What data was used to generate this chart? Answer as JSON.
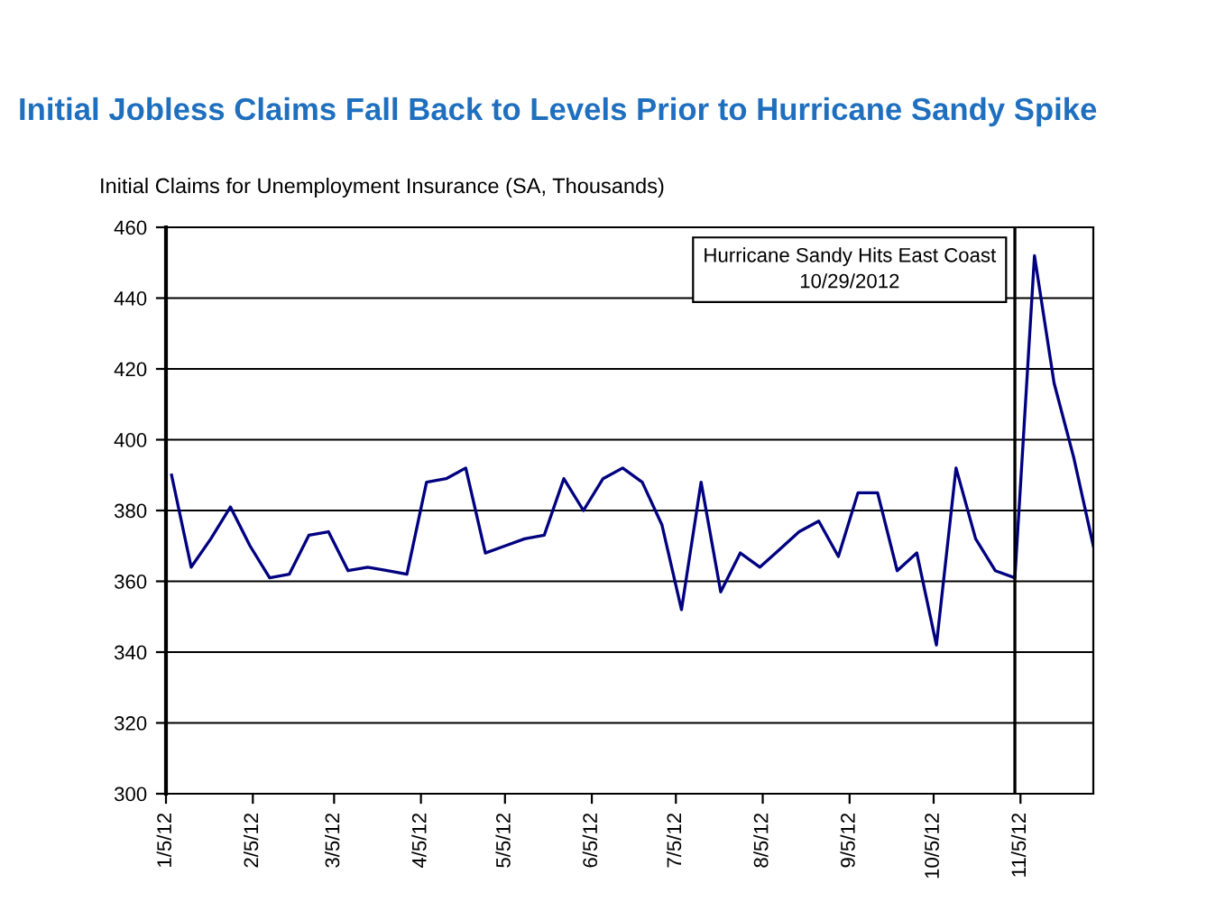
{
  "chart_data": {
    "type": "line",
    "title": "Initial Jobless Claims Fall Back to Levels Prior to Hurricane Sandy Spike",
    "ylabel": "Initial Claims for Unemployment Insurance (SA, Thousands)",
    "x": [
      "2012-01-07",
      "2012-01-14",
      "2012-01-21",
      "2012-01-28",
      "2012-02-04",
      "2012-02-11",
      "2012-02-18",
      "2012-02-25",
      "2012-03-03",
      "2012-03-10",
      "2012-03-17",
      "2012-03-24",
      "2012-03-31",
      "2012-04-07",
      "2012-04-14",
      "2012-04-21",
      "2012-04-28",
      "2012-05-05",
      "2012-05-12",
      "2012-05-19",
      "2012-05-26",
      "2012-06-02",
      "2012-06-09",
      "2012-06-16",
      "2012-06-23",
      "2012-06-30",
      "2012-07-07",
      "2012-07-14",
      "2012-07-21",
      "2012-07-28",
      "2012-08-04",
      "2012-08-11",
      "2012-08-18",
      "2012-08-25",
      "2012-09-01",
      "2012-09-08",
      "2012-09-15",
      "2012-09-22",
      "2012-09-29",
      "2012-10-06",
      "2012-10-13",
      "2012-10-20",
      "2012-10-27",
      "2012-11-03",
      "2012-11-10",
      "2012-11-17",
      "2012-11-24",
      "2012-12-01"
    ],
    "series": [
      {
        "color": "#000080",
        "values": [
          390,
          364,
          372,
          381,
          370,
          361,
          362,
          373,
          374,
          363,
          364,
          363,
          362,
          388,
          389,
          392,
          368,
          370,
          372,
          373,
          389,
          380,
          389,
          392,
          388,
          376,
          352,
          388,
          357,
          368,
          364,
          369,
          374,
          377,
          367,
          385,
          385,
          363,
          368,
          342,
          392,
          372,
          363,
          361,
          452,
          416,
          395,
          370
        ]
      }
    ],
    "xlim": [
      "2012-01-05",
      "2012-12-01"
    ],
    "xticks": [
      {
        "value": "2012-01-05",
        "label": "1/5/12"
      },
      {
        "value": "2012-02-05",
        "label": "2/5/12"
      },
      {
        "value": "2012-03-05",
        "label": "3/5/12"
      },
      {
        "value": "2012-04-05",
        "label": "4/5/12"
      },
      {
        "value": "2012-05-05",
        "label": "5/5/12"
      },
      {
        "value": "2012-06-05",
        "label": "6/5/12"
      },
      {
        "value": "2012-07-05",
        "label": "7/5/12"
      },
      {
        "value": "2012-08-05",
        "label": "8/5/12"
      },
      {
        "value": "2012-09-05",
        "label": "9/5/12"
      },
      {
        "value": "2012-10-05",
        "label": "10/5/12"
      },
      {
        "value": "2012-11-05",
        "label": "11/5/12"
      }
    ],
    "ylim": [
      300,
      460
    ],
    "yticks": [
      300,
      320,
      340,
      360,
      380,
      400,
      420,
      440,
      460
    ],
    "grid": "y",
    "marker": "none",
    "line_style": "solid",
    "ref_lines": [
      {
        "axis": "x",
        "value": "2012-11-03",
        "label": "Hurricane Sandy Hits East Coast\n10/29/2012",
        "color": "#000000"
      }
    ]
  }
}
